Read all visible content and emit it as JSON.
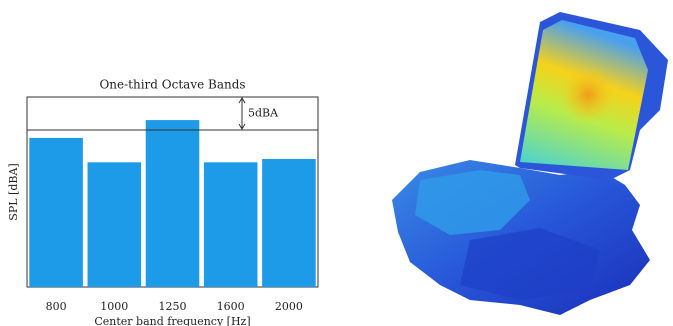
{
  "chart_data": {
    "type": "bar",
    "title": "One-third Octave Bands",
    "x_label": "Center band frequency [Hz]",
    "y_label": "SPL [dBA]",
    "categories": [
      "800",
      "1000",
      "1250",
      "1600",
      "2000"
    ],
    "values": [
      22.6,
      18.9,
      25.3,
      18.9,
      19.4
    ],
    "color": "#1d9ae8",
    "ylim": [
      0,
      28.8
    ],
    "annotation": {
      "text": "5dBA",
      "from": 23.8,
      "to": 28.8
    }
  }
}
